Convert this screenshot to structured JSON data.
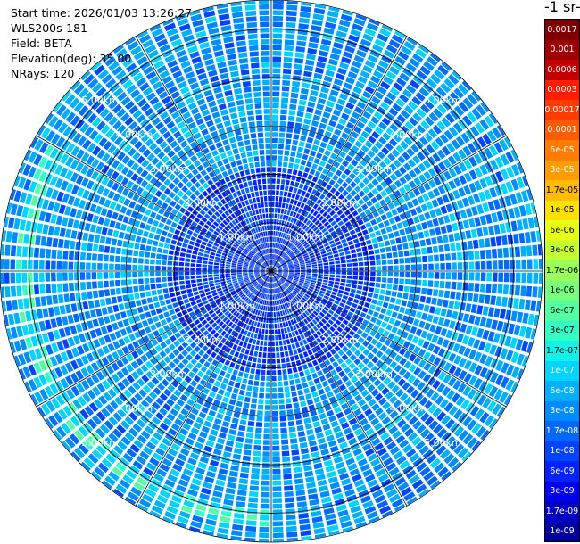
{
  "info": {
    "start_time": "Start time: 2026/01/03 13:26:27",
    "device": "WLS200s-181",
    "field": "Field: BETA",
    "elevation": "Elevation(deg): 35.00",
    "nrays": "NRays: 120"
  },
  "colorbar": {
    "unit_label": "-1 sr-",
    "ticks": [
      "0.0017",
      "0.001",
      "0.0006",
      "0.0003",
      "0.00017",
      "0.0001",
      "6e-05",
      "3e-05",
      "1.7e-05",
      "1e-05",
      "6e-06",
      "3e-06",
      "1.7e-06",
      "1e-06",
      "6e-07",
      "3e-07",
      "1.7e-07",
      "1e-07",
      "6e-08",
      "3e-08",
      "1.7e-08",
      "1e-08",
      "6e-09",
      "3e-09",
      "1.7e-09",
      "1e-09"
    ],
    "colors": [
      "#7f0000",
      "#9c0000",
      "#c00000",
      "#ff1e00",
      "#ff3c00",
      "#ff5c00",
      "#ff7c00",
      "#ff9c00",
      "#ffbc00",
      "#ffe000",
      "#e6ff14",
      "#c2ff35",
      "#9cff59",
      "#78ff7e",
      "#55ffa2",
      "#34ffc4",
      "#12f2e6",
      "#00d4ff",
      "#00b0ff",
      "#008cff",
      "#0068ff",
      "#0044ff",
      "#0024ff",
      "#0000f1",
      "#0000c8",
      "#00009f"
    ]
  },
  "chart_data": {
    "type": "heatmap",
    "title": "",
    "projection": "polar-ppi",
    "rays": 120,
    "elevation_deg": 35.0,
    "range_rings_km": [
      1,
      2,
      3,
      4,
      5
    ],
    "ring_labels": [
      "1.00km",
      "2.00km",
      "3.00km",
      "4.00km",
      "5.00km"
    ],
    "max_range_km": 5.6,
    "azimuth_spokes_deg": [
      0,
      30,
      60,
      90,
      120,
      150,
      180,
      210,
      240,
      270,
      300,
      330
    ],
    "label_azimuths_deg": [
      45,
      135,
      225,
      315
    ],
    "dominant_value_range": [
      "3e-08",
      "1e-08"
    ],
    "enhanced_arc": {
      "azimuth_from_deg": 180,
      "azimuth_to_deg": 300,
      "range_km": [
        4.9,
        5.3
      ],
      "value": "6e-08"
    },
    "colormap": "jet",
    "log_scale": true,
    "vmin": "1e-09",
    "vmax": "0.0017"
  }
}
